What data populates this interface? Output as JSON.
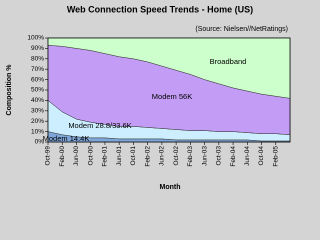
{
  "chart_data": {
    "type": "stacked_area",
    "title": "Web Connection Speed Trends - Home (US)",
    "subtitle": "(Source: Nielsen//NetRatings)",
    "x_label": "Month",
    "y_label": "Composition %",
    "categories": [
      "Oct-99",
      "Feb-00",
      "Jun-00",
      "Oct-00",
      "Feb-01",
      "Jun-01",
      "Oct-01",
      "Feb-02",
      "Jun-02",
      "Oct-02",
      "Feb-03",
      "Jun-03",
      "Oct-03",
      "Feb-04",
      "Jun-04",
      "Oct-04",
      "Feb-05",
      null
    ],
    "series": [
      {
        "name": "Modem 14.4K",
        "color": "#7fa6d8",
        "values": [
          10,
          7,
          5,
          4,
          4,
          3,
          3,
          3,
          3,
          2,
          2,
          2,
          2,
          2,
          2,
          1,
          1,
          1
        ]
      },
      {
        "name": "Modem 28.8/33.6K",
        "color": "#cceeff",
        "values": [
          30,
          22,
          17,
          15,
          13,
          12,
          12,
          11,
          10,
          10,
          9,
          9,
          8,
          8,
          7,
          7,
          7,
          6
        ]
      },
      {
        "name": "Modem 56K",
        "color": "#c39cf5",
        "values": [
          53,
          63,
          68,
          69,
          68,
          67,
          65,
          63,
          60,
          57,
          54,
          49,
          46,
          42,
          40,
          38,
          36,
          35
        ]
      },
      {
        "name": "Broadband",
        "color": "#ccffcc",
        "values": [
          7,
          8,
          10,
          12,
          15,
          18,
          20,
          23,
          27,
          31,
          35,
          40,
          44,
          48,
          51,
          54,
          56,
          58
        ]
      }
    ],
    "ylim": [
      0,
      100
    ],
    "yticks": [
      {
        "value": 0,
        "label": "0%"
      },
      {
        "value": 10,
        "label": "10%"
      },
      {
        "value": 20,
        "label": "20%"
      },
      {
        "value": 30,
        "label": "30%"
      },
      {
        "value": 40,
        "label": "40%"
      },
      {
        "value": 50,
        "label": "50%"
      },
      {
        "value": 60,
        "label": "60%"
      },
      {
        "value": 70,
        "label": "70%"
      },
      {
        "value": 80,
        "label": "80%"
      },
      {
        "value": 90,
        "label": "90%"
      },
      {
        "value": 100,
        "label": "100%"
      }
    ]
  }
}
